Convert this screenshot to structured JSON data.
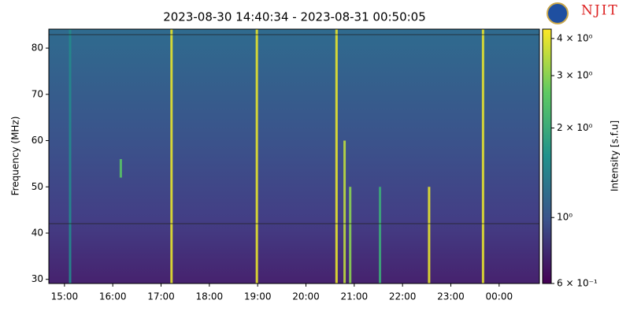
{
  "chart_data": {
    "type": "spectrogram",
    "title": "2023-08-30 14:40:34 - 2023-08-31 00:50:05",
    "y_label": "Frequency (MHz)",
    "colorbar_label": "Intensity [s.f.u]",
    "logo": "NJIT",
    "xlim": [
      "2023-08-30 14:40:34",
      "2023-08-31 00:50:05"
    ],
    "xticks": [
      {
        "value": "2023-08-30 15:00:00",
        "label": "15:00"
      },
      {
        "value": "2023-08-30 16:00:00",
        "label": "16:00"
      },
      {
        "value": "2023-08-30 17:00:00",
        "label": "17:00"
      },
      {
        "value": "2023-08-30 18:00:00",
        "label": "18:00"
      },
      {
        "value": "2023-08-30 19:00:00",
        "label": "19:00"
      },
      {
        "value": "2023-08-30 20:00:00",
        "label": "20:00"
      },
      {
        "value": "2023-08-30 21:00:00",
        "label": "21:00"
      },
      {
        "value": "2023-08-30 22:00:00",
        "label": "22:00"
      },
      {
        "value": "2023-08-30 23:00:00",
        "label": "23:00"
      },
      {
        "value": "2023-08-31 00:00:00",
        "label": "00:00"
      }
    ],
    "ylim": [
      29.1,
      84.1
    ],
    "yticks": [
      30,
      40,
      50,
      60,
      70,
      80
    ],
    "color_scale": "log",
    "colormap": "viridis",
    "clim": [
      0.6,
      4.3
    ],
    "cticks": [
      {
        "value": 4,
        "label": "4 × 10⁰"
      },
      {
        "value": 3,
        "label": "3 × 10⁰"
      },
      {
        "value": 2,
        "label": "2 × 10⁰"
      },
      {
        "value": 1,
        "label": "10⁰"
      },
      {
        "value": 0.6,
        "label": "6 × 10⁻¹"
      }
    ],
    "bursts": [
      {
        "x": "2023-08-30 15:07:00",
        "freq": [
          29.1,
          84.1
        ],
        "value": 1.5
      },
      {
        "x": "2023-08-30 16:10:00",
        "freq": [
          52,
          56
        ],
        "value": 2.5
      },
      {
        "x": "2023-08-30 17:13:00",
        "freq": [
          29.1,
          84.1
        ],
        "value": 4
      },
      {
        "x": "2023-08-30 18:59:00",
        "freq": [
          29.1,
          84.1
        ],
        "value": 4
      },
      {
        "x": "2023-08-30 20:38:00",
        "freq": [
          29.1,
          84.1
        ],
        "value": 4
      },
      {
        "x": "2023-08-30 20:48:00",
        "freq": [
          29.1,
          60
        ],
        "value": 3.5
      },
      {
        "x": "2023-08-30 20:55:00",
        "freq": [
          29.1,
          50
        ],
        "value": 3
      },
      {
        "x": "2023-08-30 21:32:00",
        "freq": [
          29.1,
          50
        ],
        "value": 2
      },
      {
        "x": "2023-08-30 22:33:00",
        "freq": [
          29.1,
          50
        ],
        "value": 4
      },
      {
        "x": "2023-08-30 23:40:00",
        "freq": [
          29.1,
          84.1
        ],
        "value": 4
      }
    ]
  }
}
